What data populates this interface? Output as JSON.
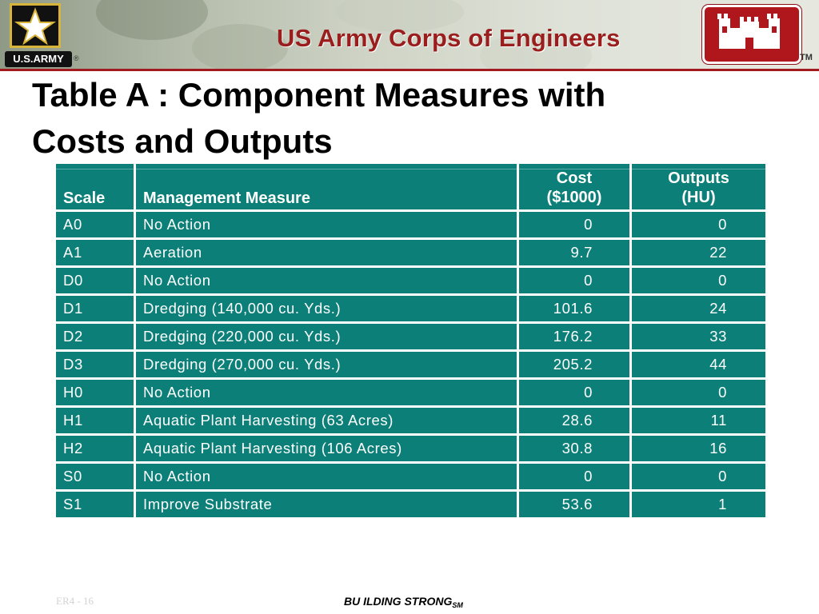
{
  "header": {
    "org_title": "US Army Corps of Engineers",
    "army_tag": "U.S.ARMY",
    "army_reg": "®",
    "trademark": "TM",
    "colors": {
      "banner_accent": "#a11a1f",
      "castle_red": "#b0171d",
      "army_gold": "#d9b43a"
    }
  },
  "slide": {
    "title_line1": "Table A : Component Measures with",
    "title_line2": "Costs and Outputs"
  },
  "table": {
    "colors": {
      "cell_bg": "#0b7f78",
      "text": "#ffffff"
    },
    "headers": {
      "scale": "Scale",
      "measure": "Management Measure",
      "cost_line1": "Cost",
      "cost_line2": "($1000)",
      "outputs_line1": "Outputs",
      "outputs_line2": "(HU)"
    },
    "rows": [
      {
        "scale": "A0",
        "measure": "No Action",
        "cost": "0",
        "outputs": "0"
      },
      {
        "scale": "A1",
        "measure": "Aeration",
        "cost": "9.7",
        "outputs": "22"
      },
      {
        "scale": "D0",
        "measure": "No Action",
        "cost": "0",
        "outputs": "0"
      },
      {
        "scale": "D1",
        "measure": "Dredging (140,000 cu. Yds.)",
        "cost": "101.6",
        "outputs": "24"
      },
      {
        "scale": "D2",
        "measure": "Dredging (220,000 cu. Yds.)",
        "cost": "176.2",
        "outputs": "33"
      },
      {
        "scale": "D3",
        "measure": "Dredging (270,000 cu. Yds.)",
        "cost": "205.2",
        "outputs": "44"
      },
      {
        "scale": "H0",
        "measure": "No Action",
        "cost": "0",
        "outputs": "0"
      },
      {
        "scale": "H1",
        "measure": "Aquatic Plant Harvesting (63 Acres)",
        "cost": "28.6",
        "outputs": "11"
      },
      {
        "scale": "H2",
        "measure": "Aquatic Plant Harvesting (106 Acres)",
        "cost": "30.8",
        "outputs": "16"
      },
      {
        "scale": "S0",
        "measure": "No Action",
        "cost": "0",
        "outputs": "0"
      },
      {
        "scale": "S1",
        "measure": "Improve Substrate",
        "cost": "53.6",
        "outputs": "1"
      }
    ]
  },
  "footer": {
    "slide_number": "ER4 - 16",
    "slogan": "BU ILDING STRONG",
    "slogan_mark": "SM"
  }
}
